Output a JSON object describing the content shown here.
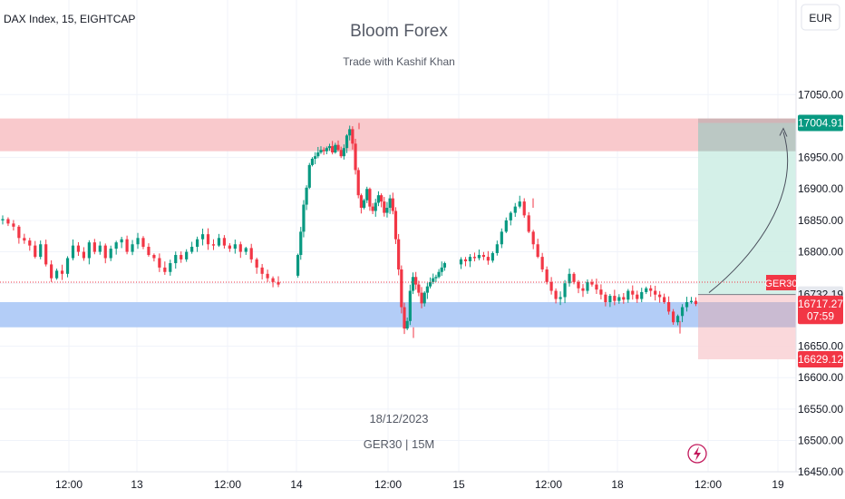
{
  "header": {
    "symbol_label": "DAX Index, 15, EIGHTCAP",
    "title": "Bloom Forex",
    "subtitle": "Trade with Kashif Khan",
    "currency_button": "EUR"
  },
  "watermark": {
    "date": "18/12/2023",
    "symbol": "GER30 | 15M"
  },
  "colors": {
    "up": "#089981",
    "down": "#f23645",
    "supply_zone": "#f9c9cc",
    "demand_zone": "#b3cdf7",
    "target_zone": "#cfeee6",
    "stop_zone": "#f9d4d7",
    "grid": "#f0f3fa"
  },
  "price_tags": [
    {
      "id": "target",
      "text": "17004.91",
      "value": 17004.91,
      "bg": "#089981",
      "fg": "#ffffff"
    },
    {
      "id": "entry",
      "text": "16732.19",
      "value": 16732.19,
      "bg": "#e6e9ef",
      "fg": "#131722"
    },
    {
      "id": "current",
      "text": "16717.27",
      "value": 16717.27,
      "bg": "#f23645",
      "fg": "#ffffff"
    },
    {
      "id": "countdown",
      "text": "07:59",
      "value": 16698,
      "bg": "#f23645",
      "fg": "#ffffff"
    },
    {
      "id": "stop",
      "text": "16629.12",
      "value": 16629.12,
      "bg": "#f23645",
      "fg": "#ffffff"
    }
  ],
  "symbol_tag": "GER30",
  "chart_data": {
    "type": "candlestick",
    "y_axis": {
      "ticks": [
        17050,
        16950,
        16900,
        16850,
        16800,
        16650,
        16600,
        16550,
        16500,
        16450
      ],
      "tick_labels": [
        "17050.00",
        "16950.00",
        "16900.00",
        "16850.00",
        "16800.00",
        "16650.00",
        "16600.00",
        "16550.00",
        "16500.00",
        "16450.00"
      ],
      "range": [
        16430,
        17110
      ]
    },
    "x_axis": {
      "tick_labels": [
        "12:00",
        "13",
        "12:00",
        "14",
        "12:00",
        "15",
        "12:00",
        "18",
        "12:00",
        "19"
      ]
    },
    "zones": [
      {
        "name": "supply",
        "from": 16960,
        "to": 17012
      },
      {
        "name": "demand",
        "from": 16680,
        "to": 16720
      }
    ],
    "position": {
      "entry": 16732.19,
      "target": 17004.91,
      "stop": 16629.12,
      "current": 16717.27
    },
    "price_path": [
      [
        16850,
        16852,
        16845,
        16840,
        16822,
        16818,
        16810,
        16792,
        16812,
        16780,
        16758,
        16770,
        16765,
        16790,
        16810,
        16800,
        16790,
        16815,
        16800,
        16810,
        16790,
        16805,
        16815,
        16820,
        16800,
        16812,
        16822,
        16808,
        16795,
        16790,
        16775,
        16768,
        16782,
        16795,
        16788,
        16800,
        16808,
        16820,
        16828,
        16812,
        16810,
        16822,
        16810,
        16805,
        16812,
        16800,
        16806,
        16788,
        16775,
        16765,
        16758,
        16752,
        16748
      ],
      [
        16762,
        16795,
        16832,
        16875,
        16902,
        16938,
        16948,
        16952,
        16958,
        16962,
        16960,
        16965,
        16968,
        16958,
        16970,
        16962,
        16952,
        16965,
        16985,
        16995,
        16972,
        16930,
        16890,
        16870,
        16882,
        16900,
        16872,
        16865,
        16878,
        16890,
        16880,
        16862,
        16870,
        16885,
        16865,
        16820,
        16772,
        16712,
        16678,
        16690,
        16738,
        16760,
        16748,
        16735,
        16718,
        16735,
        16745,
        16752,
        16758,
        16760,
        16768,
        16775,
        16782
      ],
      [
        16780,
        16788,
        16785,
        16792,
        16790,
        16795,
        16792,
        16786,
        16798,
        16812,
        16832,
        16850,
        16862,
        16872,
        16880,
        16858,
        16832,
        16812,
        16792,
        16772,
        16752,
        16738,
        16725,
        16728,
        16750,
        16765,
        16752,
        16742,
        16738,
        16752,
        16748,
        16740,
        16732,
        16720,
        16730,
        16722,
        16728,
        16724,
        16738,
        16732,
        16725,
        16736,
        16742,
        16738,
        16732,
        16728,
        16720,
        16705,
        16688,
        16698,
        16712,
        16720,
        16722,
        16717
      ]
    ]
  }
}
